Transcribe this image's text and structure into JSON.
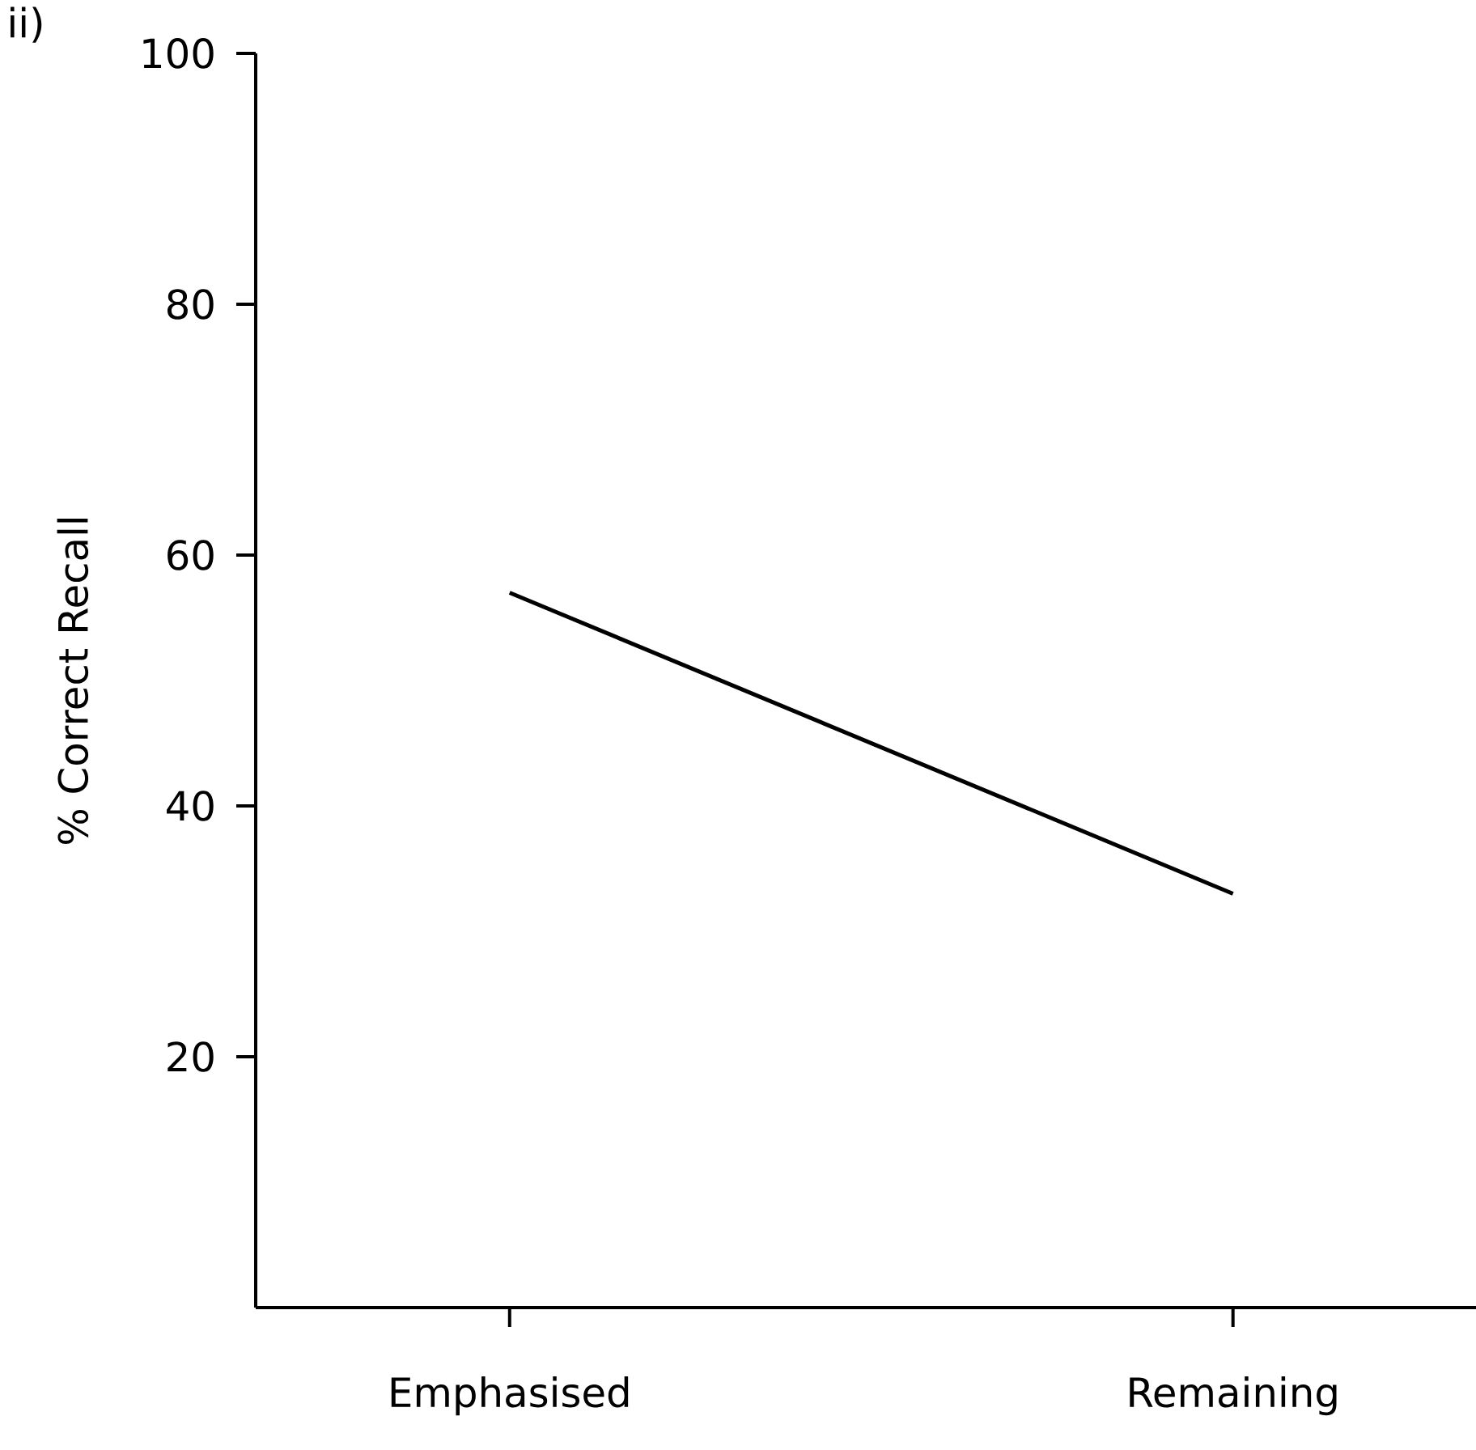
{
  "chart_data": {
    "type": "line",
    "categories": [
      "Emphasised",
      "Remaining"
    ],
    "values": [
      57,
      33
    ],
    "color": "#000000",
    "ylabel": "% Correct Recall",
    "ylim": [
      0,
      100
    ],
    "yticks": [
      20,
      40,
      60,
      80,
      100
    ],
    "annotations": [
      "ii)"
    ],
    "grid": false,
    "marker": "none",
    "line_style": "solid"
  }
}
